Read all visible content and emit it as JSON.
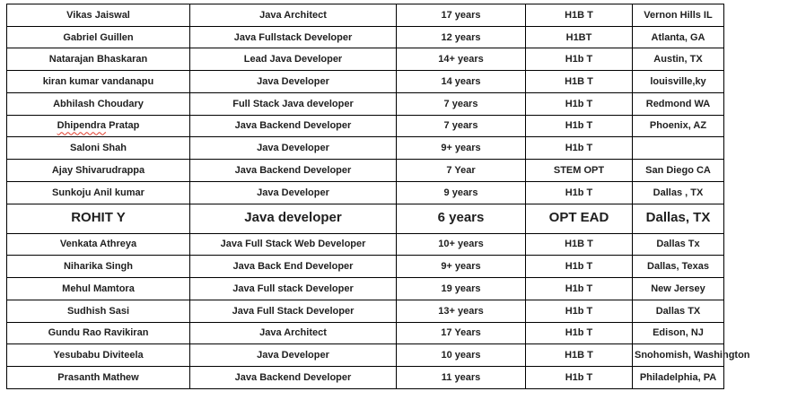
{
  "colors": {
    "border": "#000000",
    "text": "#1f1f1f",
    "spellcheck": "#e03e2d",
    "page": "#ffffff"
  },
  "table": {
    "column_keys": [
      "name",
      "title",
      "experience",
      "visa",
      "location"
    ],
    "rows": [
      {
        "name": "Vikas Jaiswal",
        "title": "Java Architect",
        "experience": "17 years",
        "visa": "H1B T",
        "location": "Vernon Hills IL"
      },
      {
        "name": "Gabriel Guillen",
        "title": "Java Fullstack Developer",
        "experience": "12 years",
        "visa": "H1BT",
        "location": "Atlanta, GA"
      },
      {
        "name": "Natarajan Bhaskaran",
        "title": "Lead Java Developer",
        "experience": "14+ years",
        "visa": "H1b T",
        "location": "Austin, TX"
      },
      {
        "name": "kiran kumar vandanapu",
        "title": "Java Developer",
        "experience": "14 years",
        "visa": "H1B T",
        "location": "louisville,ky"
      },
      {
        "name": "Abhilash Choudary",
        "title": "Full Stack Java developer",
        "experience": "7 years",
        "visa": "H1b T",
        "location": "Redmond WA"
      },
      {
        "name": "Dhipendra Pratap",
        "title": "Java Backend Developer",
        "experience": "7 years",
        "visa": "H1b T",
        "location": "Phoenix, AZ",
        "spellcheck_prefix": "Dhipendra"
      },
      {
        "name": "Saloni Shah",
        "title": "Java Developer",
        "experience": "9+ years",
        "visa": "H1b T",
        "location": ""
      },
      {
        "name": "Ajay Shivarudrappa",
        "title": "Java Backend Developer",
        "experience": "7 Year",
        "visa": "STEM OPT",
        "location": "San Diego CA"
      },
      {
        "name": "Sunkoju Anil kumar",
        "title": "Java Developer",
        "experience": "9 years",
        "visa": "H1b T",
        "location": "Dallas , TX"
      },
      {
        "name": "ROHIT Y",
        "title": "Java developer",
        "experience": "6 years",
        "visa": "OPT EAD",
        "location": "Dallas, TX",
        "emphasis": true
      },
      {
        "name": "Venkata Athreya",
        "title": "Java Full Stack Web Developer",
        "experience": "10+ years",
        "visa": "H1B T",
        "location": "Dallas Tx"
      },
      {
        "name": "Niharika Singh",
        "title": "Java Back End Developer",
        "experience": "9+ years",
        "visa": "H1b T",
        "location": "Dallas, Texas"
      },
      {
        "name": "Mehul Mamtora",
        "title": "Java Full stack Developer",
        "experience": "19 years",
        "visa": "H1b T",
        "location": "New Jersey"
      },
      {
        "name": "Sudhish Sasi",
        "title": "Java Full Stack Developer",
        "experience": "13+ years",
        "visa": "H1b T",
        "location": "Dallas TX"
      },
      {
        "name": "Gundu Rao Ravikiran",
        "title": "Java Architect",
        "experience": "17 Years",
        "visa": "H1b T",
        "location": "Edison, NJ"
      },
      {
        "name": "Yesubabu Diviteela",
        "title": "Java Developer",
        "experience": "10 years",
        "visa": "H1B T",
        "location": "Snohomish, Washington",
        "location_overflow": true
      },
      {
        "name": "Prasanth Mathew",
        "title": "Java Backend Developer",
        "experience": "11 years",
        "visa": "H1b T",
        "location": "Philadelphia, PA"
      }
    ]
  }
}
